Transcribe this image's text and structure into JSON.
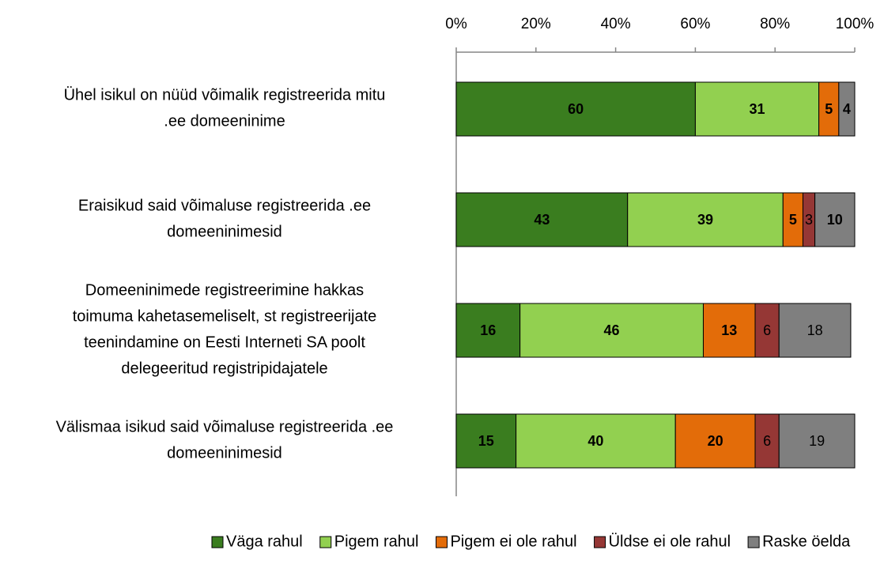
{
  "chart_data": {
    "type": "stacked-bar-horizontal",
    "categories": [
      "Ühel isikul on nüüd võimalik registreerida mitu\n.ee domeeninime",
      "Eraisikud said võimaluse registreerida .ee\ndomeeninimesid",
      "Domeeninimede registreerimine hakkas\ntoimuma kahetasemeliselt, st registreerijate\nteenindamine on Eesti Interneti SA poolt\ndelegeeritud registripidajatele",
      "Välismaa isikud said võimaluse registreerida .ee\ndomeeninimesid"
    ],
    "series": [
      {
        "name": "Väga rahul",
        "color": "#3a7d1f",
        "label_color": "#ffffff",
        "values": [
          60,
          43,
          16,
          15
        ]
      },
      {
        "name": "Pigem rahul",
        "color": "#92d050",
        "label_color": "#000000",
        "values": [
          31,
          39,
          46,
          40
        ]
      },
      {
        "name": "Pigem ei ole rahul",
        "color": "#e36c09",
        "label_color": "#000000",
        "values": [
          5,
          5,
          13,
          20
        ]
      },
      {
        "name": "Üldse ei ole rahul",
        "color": "#953735",
        "label_color": "#ffffff",
        "values": [
          null,
          3,
          6,
          6
        ]
      },
      {
        "name": "Raske öelda",
        "color": "#7f7f7f",
        "label_color": "#ffffff",
        "values": [
          4,
          10,
          18,
          19
        ]
      }
    ],
    "xlim": [
      0,
      100
    ],
    "xticks": [
      {
        "value": 0,
        "label": "0%"
      },
      {
        "value": 20,
        "label": "20%"
      },
      {
        "value": 40,
        "label": "40%"
      },
      {
        "value": 60,
        "label": "60%"
      },
      {
        "value": 80,
        "label": "80%"
      },
      {
        "value": 100,
        "label": "100%"
      }
    ],
    "legend": "bottom"
  }
}
